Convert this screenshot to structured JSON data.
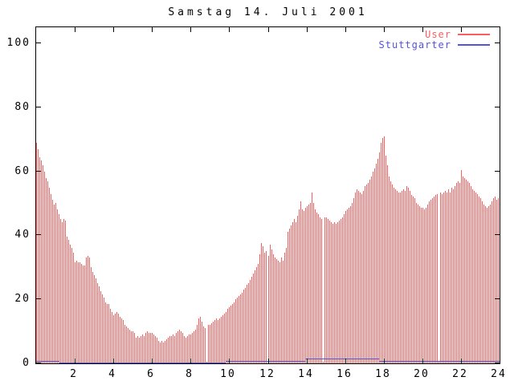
{
  "window": {
    "background": "#ffffff",
    "foreground": "#000000"
  },
  "chart_data": {
    "type": "bar",
    "title": "Samstag 14. Juli 2001",
    "xlabel": "",
    "ylabel": "",
    "x_unit": "hour-of-day",
    "xlim": [
      0,
      24
    ],
    "ylim": [
      0,
      105
    ],
    "xticks": [
      2,
      4,
      6,
      8,
      10,
      12,
      14,
      16,
      18,
      20,
      22,
      24
    ],
    "yticks": [
      0,
      20,
      40,
      60,
      80,
      100
    ],
    "grid": false,
    "legend_position": "top-right-inside",
    "axis_color": "#000000",
    "series": [
      {
        "name": "User",
        "style": "impulses",
        "color": "#f86060",
        "interval_minutes": 5,
        "start_hour": 0,
        "values": [
          69,
          67,
          64.5,
          63.5,
          62,
          60,
          58,
          57,
          55,
          53,
          51,
          49.5,
          50,
          48,
          46.5,
          45,
          44,
          45,
          44.5,
          39.5,
          38.5,
          37,
          36,
          34.5,
          31.5,
          32,
          31.5,
          31.5,
          31,
          30.5,
          30.5,
          33,
          33.5,
          33,
          30,
          28.5,
          27.5,
          26.5,
          25,
          24,
          22.5,
          21.5,
          20.5,
          19,
          18.5,
          18.5,
          17,
          16,
          15,
          15.5,
          16,
          15.5,
          14.5,
          14,
          13.5,
          12,
          11.5,
          11,
          10.5,
          10,
          10,
          9.5,
          8,
          8.5,
          8,
          8.5,
          9,
          8.5,
          9.5,
          10,
          9.5,
          9.5,
          9.5,
          9,
          8.5,
          8,
          7,
          6.5,
          7,
          6.5,
          7,
          7.5,
          8,
          8.5,
          8.5,
          9,
          8.5,
          9.5,
          10,
          10.5,
          10,
          9.5,
          8.5,
          8,
          8.5,
          9,
          9,
          9.5,
          10,
          10.5,
          12,
          14,
          14.5,
          13,
          11.5,
          11,
          0.5,
          12,
          12,
          12.5,
          13,
          13.5,
          14,
          13.5,
          14,
          14.5,
          15,
          15.5,
          16,
          17,
          17.5,
          18,
          18.5,
          19,
          20,
          20.5,
          21,
          21.5,
          22,
          23,
          23.5,
          24.5,
          25,
          26,
          27,
          28,
          29,
          30,
          31,
          34,
          37.5,
          36.5,
          34.5,
          35,
          33.5,
          37,
          35.5,
          34,
          33,
          32.5,
          32,
          31.5,
          33,
          32,
          34.5,
          36,
          41,
          42,
          43,
          44,
          45,
          44,
          46,
          48,
          50.5,
          48,
          47.5,
          48.5,
          49,
          49.5,
          50,
          53.5,
          50,
          48,
          47,
          46.5,
          45.5,
          45,
          0.5,
          45.5,
          45.5,
          45,
          44.5,
          44,
          43.5,
          44,
          43.5,
          44,
          44.5,
          45,
          45.5,
          46.5,
          47.5,
          48,
          48.5,
          49,
          50,
          51.5,
          53.5,
          54.5,
          54,
          53.5,
          53,
          54,
          55.5,
          56,
          56.5,
          57.5,
          58.5,
          60,
          61,
          62.5,
          64,
          66,
          69,
          70.5,
          71,
          65,
          62,
          58.5,
          57,
          56,
          55,
          54.5,
          54,
          53.5,
          53.5,
          54,
          54.5,
          54,
          55.5,
          55,
          54,
          52.5,
          52,
          51.5,
          50,
          49.5,
          49,
          48.5,
          48.5,
          48,
          48.5,
          49.5,
          50.5,
          51,
          51.5,
          52,
          52.5,
          53,
          0.5,
          53.5,
          53,
          53.5,
          54,
          53.5,
          54.5,
          53.5,
          55,
          54.5,
          55.5,
          56.5,
          57,
          56.5,
          60.5,
          58.5,
          58,
          57.5,
          57,
          56.5,
          55.5,
          54.5,
          54,
          53.5,
          53,
          52,
          51.5,
          50.5,
          49.5,
          49,
          48.5,
          49,
          49.5,
          50.5,
          51.5,
          52,
          51,
          51.5
        ]
      },
      {
        "name": "Stuttgarter",
        "style": "line",
        "color": "#5353e0",
        "segments": [
          {
            "from_hour": 0,
            "to_hour": 1.2,
            "value": 0.5
          },
          {
            "from_hour": 1.2,
            "to_hour": 9.8,
            "value": 0
          },
          {
            "from_hour": 9.8,
            "to_hour": 13.95,
            "value": 0.5
          },
          {
            "from_hour": 13.95,
            "to_hour": 17.75,
            "value": 1.2
          },
          {
            "from_hour": 17.75,
            "to_hour": 24,
            "value": 0.5
          }
        ]
      }
    ]
  }
}
